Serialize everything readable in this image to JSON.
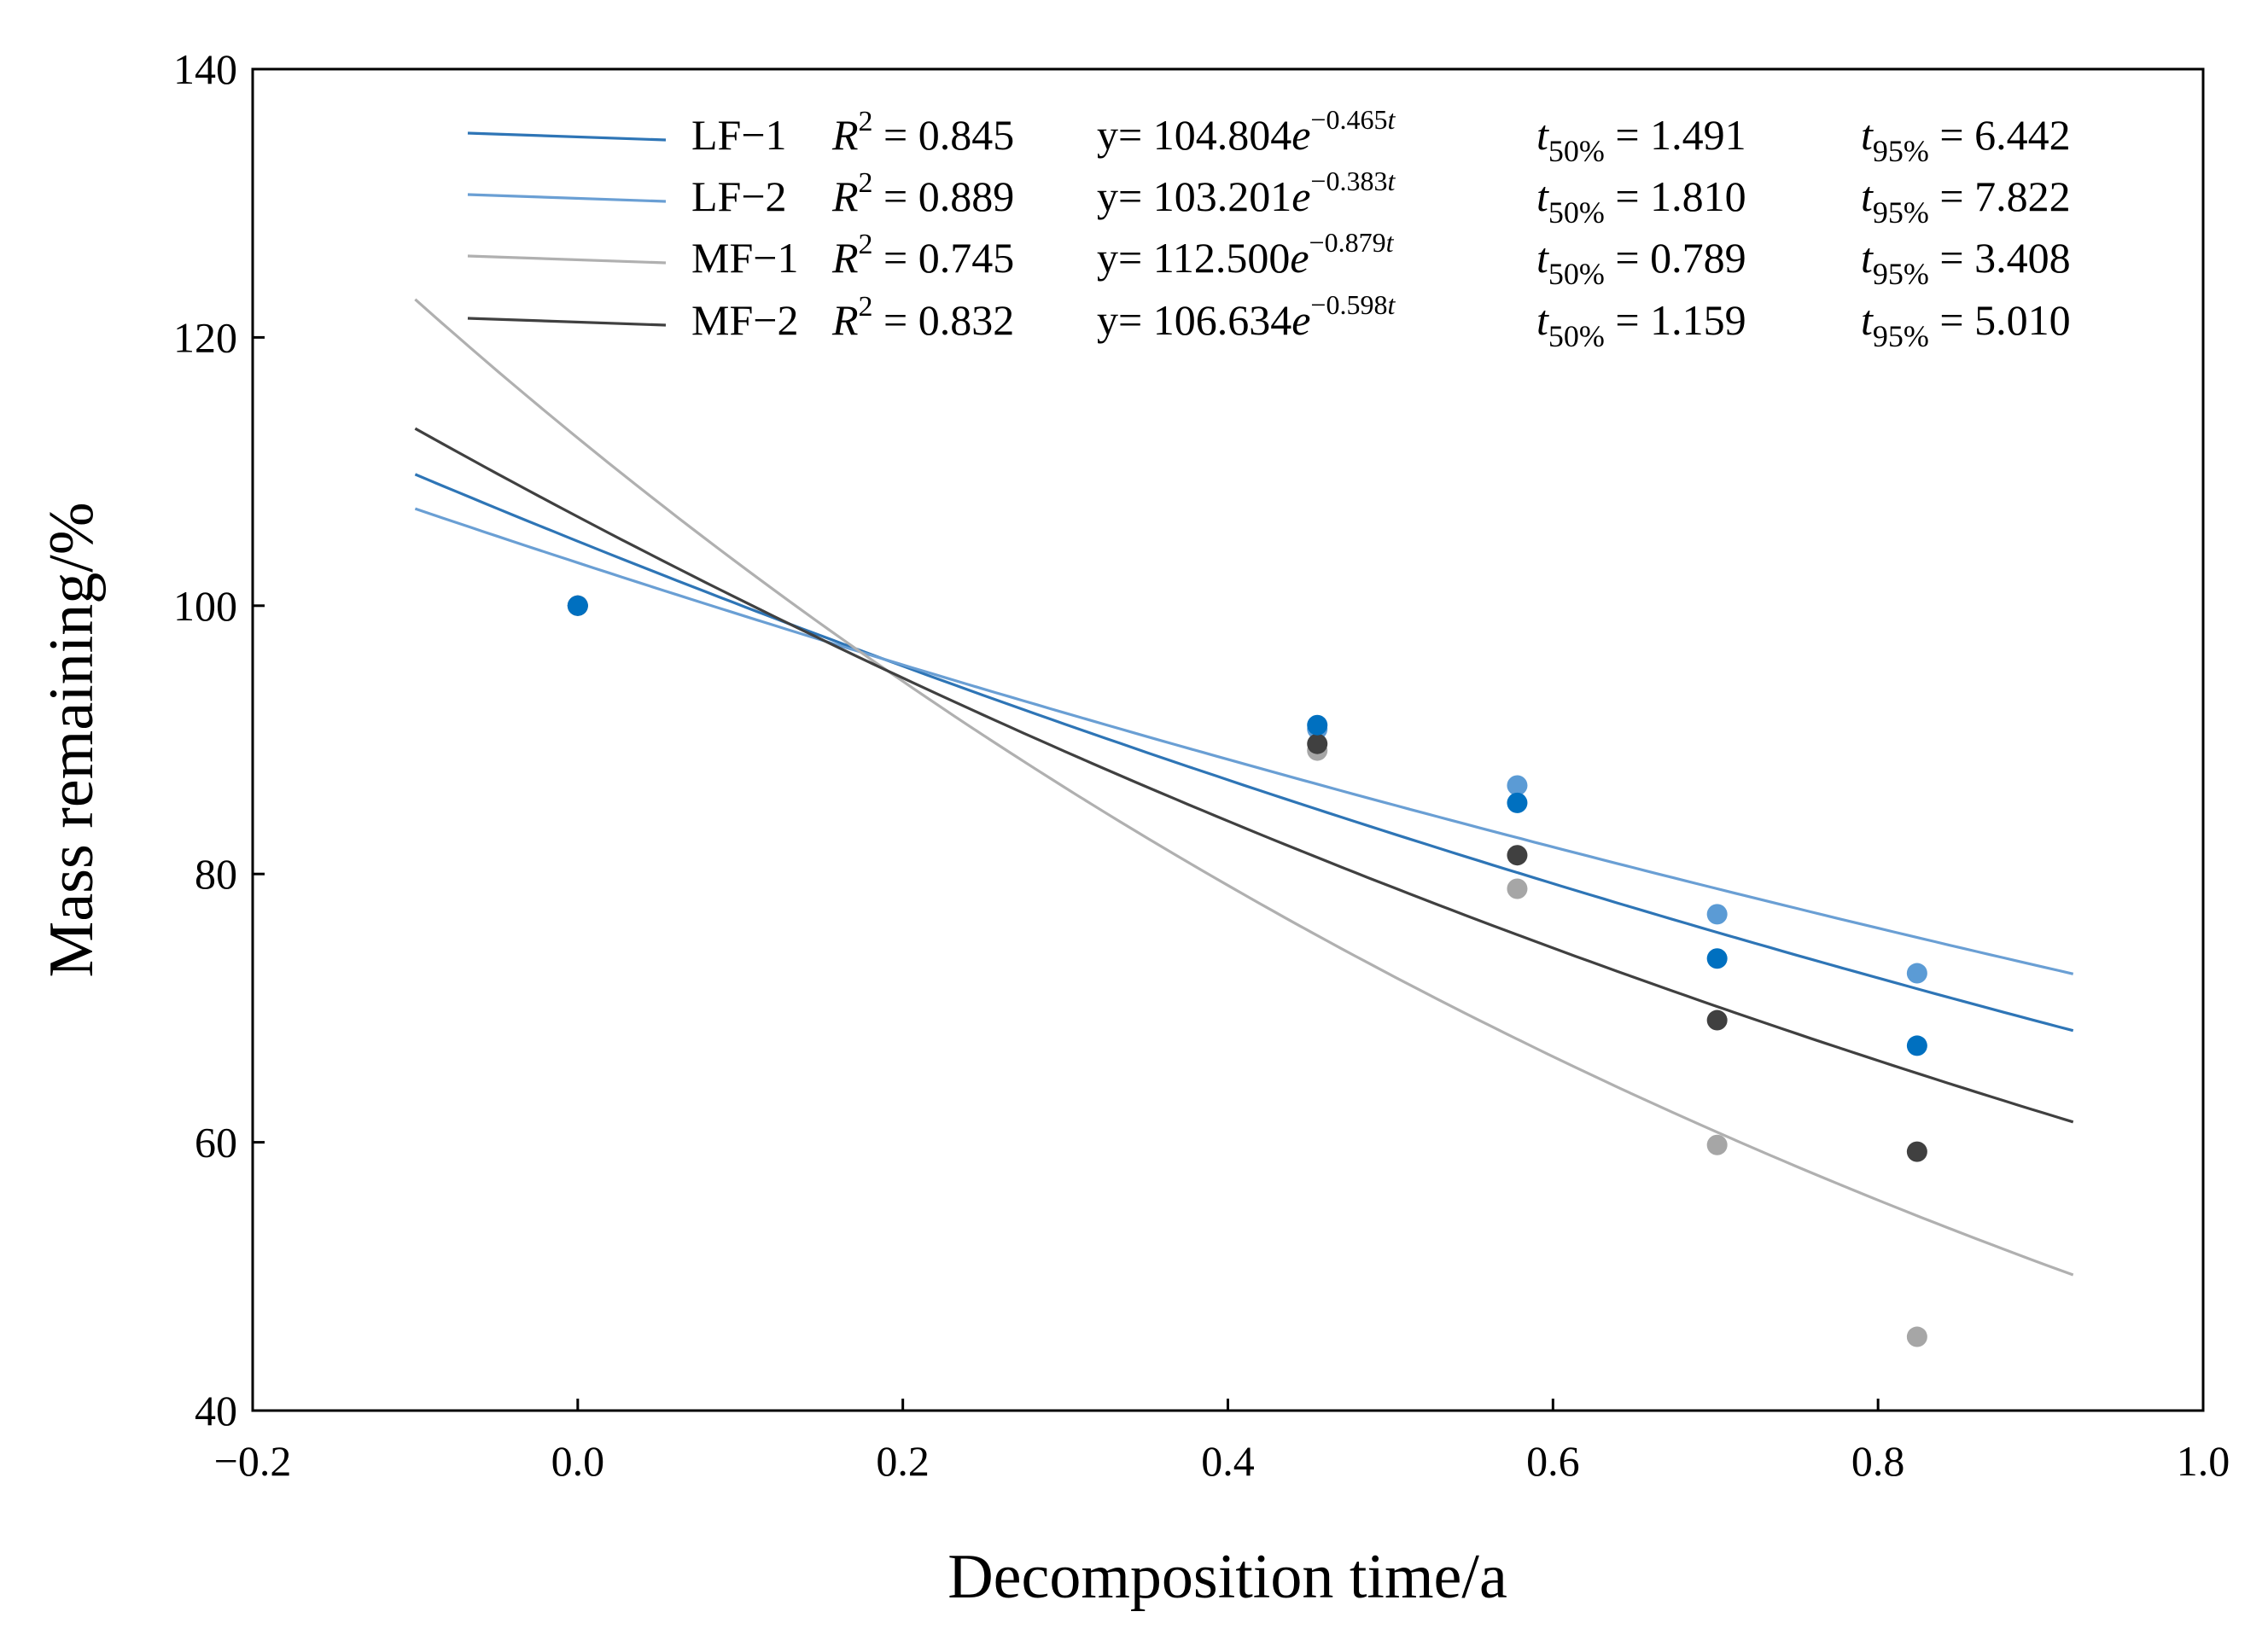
{
  "chart_data": {
    "type": "scatter",
    "title": "",
    "xlabel": "Decomposition time/a",
    "ylabel": "Mass remaining/%",
    "xlim": [
      -0.2,
      1.0
    ],
    "ylim": [
      40,
      140
    ],
    "x_ticks": [
      -0.2,
      0.0,
      0.2,
      0.4,
      0.6,
      0.8,
      1.0
    ],
    "x_tick_labels": [
      "−0.2",
      "0.0",
      "0.2",
      "0.4",
      "0.6",
      "0.8",
      "1.0"
    ],
    "y_ticks": [
      40,
      60,
      80,
      100,
      120,
      140
    ],
    "y_tick_labels": [
      "40",
      "60",
      "80",
      "100",
      "120",
      "140"
    ],
    "grid": false,
    "legend_position": "top",
    "fit_range": [
      -0.1,
      0.92
    ],
    "series": [
      {
        "name": "LF−1",
        "color": "#2e75b6",
        "marker_color": "#0070c0",
        "fit": {
          "a": 104.804,
          "k": 0.465
        },
        "r2": "0.845",
        "equation_coef": "104.804",
        "equation_exp": "−0.465",
        "t50": "1.491",
        "t95": "6.442",
        "points": [
          {
            "x": 0.0,
            "y": 100.0
          },
          {
            "x": 0.455,
            "y": 91.1
          },
          {
            "x": 0.578,
            "y": 85.3
          },
          {
            "x": 0.701,
            "y": 73.7
          },
          {
            "x": 0.824,
            "y": 67.2
          }
        ]
      },
      {
        "name": "LF−2",
        "color": "#6a9fd4",
        "marker_color": "#5b9bd5",
        "fit": {
          "a": 103.201,
          "k": 0.383
        },
        "r2": "0.889",
        "equation_coef": "103.201",
        "equation_exp": "−0.383",
        "t50": "1.810",
        "t95": "7.822",
        "points": [
          {
            "x": 0.0,
            "y": 100.0
          },
          {
            "x": 0.455,
            "y": 90.8
          },
          {
            "x": 0.578,
            "y": 86.6
          },
          {
            "x": 0.701,
            "y": 77.0
          },
          {
            "x": 0.824,
            "y": 72.6
          }
        ]
      },
      {
        "name": "MF−1",
        "color": "#b0b0b0",
        "marker_color": "#a6a6a6",
        "fit": {
          "a": 112.5,
          "k": 0.879
        },
        "r2": "0.745",
        "equation_coef": "112.500",
        "equation_exp": "−0.879",
        "t50": "0.789",
        "t95": "3.408",
        "points": [
          {
            "x": 0.0,
            "y": 100.0
          },
          {
            "x": 0.455,
            "y": 89.2
          },
          {
            "x": 0.578,
            "y": 78.9
          },
          {
            "x": 0.701,
            "y": 59.8
          },
          {
            "x": 0.824,
            "y": 45.5
          }
        ]
      },
      {
        "name": "MF−2",
        "color": "#404040",
        "marker_color": "#404040",
        "fit": {
          "a": 106.634,
          "k": 0.598
        },
        "r2": "0.832",
        "equation_coef": "106.634",
        "equation_exp": "−0.598",
        "t50": "1.159",
        "t95": "5.010",
        "points": [
          {
            "x": 0.0,
            "y": 100.0
          },
          {
            "x": 0.455,
            "y": 89.7
          },
          {
            "x": 0.578,
            "y": 81.4
          },
          {
            "x": 0.701,
            "y": 69.1
          },
          {
            "x": 0.824,
            "y": 59.3
          }
        ]
      }
    ],
    "legend_text": {
      "r2_symbol": "R",
      "r2_sup": "2",
      "equals": "=",
      "y_prefix": "y=",
      "e_symbol": "e",
      "exp_var": "t",
      "t_symbol": "t",
      "t50_sub": "50%",
      "t95_sub": "95%"
    }
  }
}
